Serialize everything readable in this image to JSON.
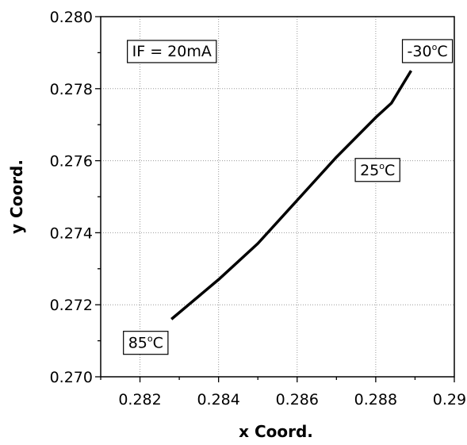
{
  "chart_data": {
    "type": "line",
    "xlabel": "x Coord.",
    "ylabel": "y Coord.",
    "xlim": [
      0.281,
      0.29
    ],
    "ylim": [
      0.27,
      0.28
    ],
    "x_ticks": [
      "0.282",
      "0.284",
      "0.286",
      "0.288",
      "0.290"
    ],
    "y_ticks": [
      "0.270",
      "0.272",
      "0.274",
      "0.276",
      "0.278",
      "0.280"
    ],
    "grid": true,
    "series": [
      {
        "color": "#000000",
        "x": [
          0.2828,
          0.284,
          0.285,
          0.286,
          0.287,
          0.288,
          0.2884,
          0.2889
        ],
        "y": [
          0.2716,
          0.2727,
          0.2737,
          0.2749,
          0.2761,
          0.2772,
          0.2776,
          0.2785
        ]
      }
    ],
    "annotations": [
      {
        "key": "condition",
        "text": "IF = 20mA",
        "x": 0.2818,
        "y": 0.2789
      },
      {
        "key": "cold",
        "text": "-30",
        "sup": "o",
        "suffix": "C",
        "x": 0.2888,
        "y": 0.2789
      },
      {
        "key": "mid",
        "text": "25",
        "sup": "o",
        "suffix": "C",
        "x": 0.2876,
        "y": 0.2756
      },
      {
        "key": "hot",
        "text": "85",
        "sup": "o",
        "suffix": "C",
        "x": 0.2817,
        "y": 0.2708
      }
    ]
  }
}
